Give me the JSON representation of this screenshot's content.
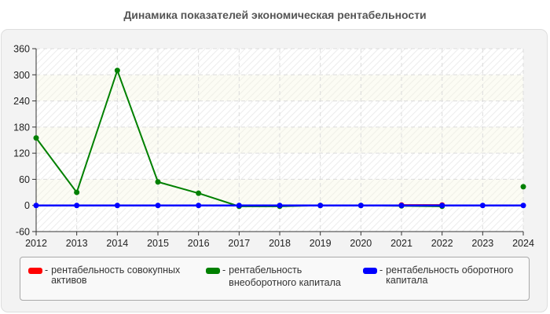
{
  "chart_data": {
    "type": "line",
    "title": "Динамика показателей экономическая рентабельности",
    "xlabel": "",
    "ylabel": "",
    "x": [
      2012,
      2013,
      2014,
      2015,
      2016,
      2017,
      2018,
      2019,
      2020,
      2021,
      2022,
      2023,
      2024
    ],
    "ylim": [
      -60,
      360
    ],
    "yticks": [
      -60,
      0,
      60,
      120,
      180,
      240,
      300,
      360
    ],
    "grid": true,
    "legend_position": "bottom",
    "series": [
      {
        "name": "рентабельность совокупных активов",
        "color": "#ff0000",
        "values": [
          null,
          null,
          null,
          null,
          null,
          null,
          null,
          null,
          null,
          1,
          1,
          null,
          null
        ]
      },
      {
        "name": "рентабельность внеоборотного капитала",
        "color": "#008000",
        "values": [
          155,
          30,
          310,
          54,
          28,
          -2,
          -2,
          0,
          0,
          -1,
          -2,
          null,
          43
        ]
      },
      {
        "name": "рентабельность оборотного капитала",
        "color": "#0000ff",
        "values": [
          0,
          0,
          0,
          0,
          0,
          0,
          0,
          0,
          0,
          0,
          0,
          0,
          0
        ]
      }
    ]
  },
  "legend": {
    "items": [
      {
        "dash": "-",
        "line1": "рентабельность совокупных",
        "line2": "активов",
        "color": "#ff0000"
      },
      {
        "dash": "-",
        "line1": "рентабельность",
        "line2": "внеоборотного капитала",
        "color": "#008000"
      },
      {
        "dash": "-",
        "line1": "рентабельность оборотного",
        "line2": "капитала",
        "color": "#0000ff"
      }
    ]
  }
}
